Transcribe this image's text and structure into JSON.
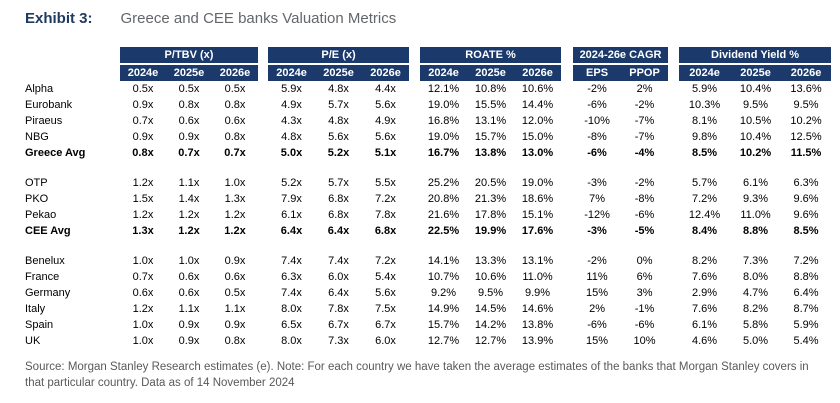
{
  "exhibit": {
    "label": "Exhibit 3:",
    "title": "Greece and CEE banks Valuation Metrics"
  },
  "colors": {
    "header_bg": "#1b3a6b",
    "exhibit_label_navy": "#1f3a5f",
    "title_gray": "#63666a",
    "footer_gray": "#595959"
  },
  "table": {
    "groups": [
      {
        "label": "P/TBV (x)",
        "cols": [
          "2024e",
          "2025e",
          "2026e"
        ]
      },
      {
        "label": "P/E (x)",
        "cols": [
          "2024e",
          "2025e",
          "2026e"
        ]
      },
      {
        "label": "ROATE %",
        "cols": [
          "2024e",
          "2025e",
          "2026e"
        ]
      },
      {
        "label": "2024-26e CAGR",
        "cols": [
          "EPS",
          "PPOP"
        ]
      },
      {
        "label": "Dividend Yield %",
        "cols": [
          "2024e",
          "2025e",
          "2026e"
        ]
      }
    ],
    "sections": [
      {
        "rows": [
          {
            "label": "Alpha",
            "bold": false,
            "values": [
              "0.5x",
              "0.5x",
              "0.5x",
              "5.9x",
              "4.8x",
              "4.4x",
              "12.1%",
              "10.8%",
              "10.6%",
              "-2%",
              "2%",
              "5.9%",
              "10.4%",
              "13.6%"
            ]
          },
          {
            "label": "Eurobank",
            "bold": false,
            "values": [
              "0.9x",
              "0.8x",
              "0.8x",
              "4.9x",
              "5.7x",
              "5.6x",
              "19.0%",
              "15.5%",
              "14.4%",
              "-6%",
              "-2%",
              "10.3%",
              "9.5%",
              "9.5%"
            ]
          },
          {
            "label": "Piraeus",
            "bold": false,
            "values": [
              "0.7x",
              "0.6x",
              "0.6x",
              "4.3x",
              "4.8x",
              "4.9x",
              "16.8%",
              "13.1%",
              "12.0%",
              "-10%",
              "-7%",
              "8.1%",
              "10.5%",
              "10.2%"
            ]
          },
          {
            "label": "NBG",
            "bold": false,
            "values": [
              "0.9x",
              "0.9x",
              "0.8x",
              "4.8x",
              "5.6x",
              "5.6x",
              "19.0%",
              "15.7%",
              "15.0%",
              "-8%",
              "-7%",
              "9.8%",
              "10.4%",
              "12.5%"
            ]
          },
          {
            "label": "Greece Avg",
            "bold": true,
            "values": [
              "0.8x",
              "0.7x",
              "0.7x",
              "5.0x",
              "5.2x",
              "5.1x",
              "16.7%",
              "13.8%",
              "13.0%",
              "-6%",
              "-4%",
              "8.5%",
              "10.2%",
              "11.5%"
            ]
          }
        ]
      },
      {
        "rows": [
          {
            "label": "OTP",
            "bold": false,
            "values": [
              "1.2x",
              "1.1x",
              "1.0x",
              "5.2x",
              "5.7x",
              "5.5x",
              "25.2%",
              "20.5%",
              "19.0%",
              "-3%",
              "-2%",
              "5.7%",
              "6.1%",
              "6.3%"
            ]
          },
          {
            "label": "PKO",
            "bold": false,
            "values": [
              "1.5x",
              "1.4x",
              "1.3x",
              "7.9x",
              "6.8x",
              "7.2x",
              "20.8%",
              "21.3%",
              "18.6%",
              "7%",
              "-8%",
              "7.2%",
              "9.3%",
              "9.6%"
            ]
          },
          {
            "label": "Pekao",
            "bold": false,
            "values": [
              "1.2x",
              "1.2x",
              "1.2x",
              "6.1x",
              "6.8x",
              "7.8x",
              "21.6%",
              "17.8%",
              "15.1%",
              "-12%",
              "-6%",
              "12.4%",
              "11.0%",
              "9.6%"
            ]
          },
          {
            "label": "CEE Avg",
            "bold": true,
            "values": [
              "1.3x",
              "1.2x",
              "1.2x",
              "6.4x",
              "6.4x",
              "6.8x",
              "22.5%",
              "19.9%",
              "17.6%",
              "-3%",
              "-5%",
              "8.4%",
              "8.8%",
              "8.5%"
            ]
          }
        ]
      },
      {
        "rows": [
          {
            "label": "Benelux",
            "bold": false,
            "values": [
              "1.0x",
              "1.0x",
              "0.9x",
              "7.4x",
              "7.4x",
              "7.2x",
              "14.1%",
              "13.3%",
              "13.1%",
              "-2%",
              "0%",
              "8.2%",
              "7.3%",
              "7.2%"
            ]
          },
          {
            "label": "France",
            "bold": false,
            "values": [
              "0.7x",
              "0.6x",
              "0.6x",
              "6.3x",
              "6.0x",
              "5.4x",
              "10.7%",
              "10.6%",
              "11.0%",
              "11%",
              "6%",
              "7.6%",
              "8.0%",
              "8.8%"
            ]
          },
          {
            "label": "Germany",
            "bold": false,
            "values": [
              "0.6x",
              "0.6x",
              "0.5x",
              "7.4x",
              "6.4x",
              "5.6x",
              "9.2%",
              "9.5%",
              "9.9%",
              "15%",
              "3%",
              "2.9%",
              "4.7%",
              "6.4%"
            ]
          },
          {
            "label": "Italy",
            "bold": false,
            "values": [
              "1.2x",
              "1.1x",
              "1.1x",
              "8.0x",
              "7.8x",
              "7.5x",
              "14.9%",
              "14.5%",
              "14.6%",
              "2%",
              "-1%",
              "7.6%",
              "8.2%",
              "8.7%"
            ]
          },
          {
            "label": "Spain",
            "bold": false,
            "values": [
              "1.0x",
              "0.9x",
              "0.9x",
              "6.5x",
              "6.7x",
              "6.7x",
              "15.7%",
              "14.2%",
              "13.8%",
              "-6%",
              "-6%",
              "6.1%",
              "5.8%",
              "5.9%"
            ]
          },
          {
            "label": "UK",
            "bold": false,
            "values": [
              "1.0x",
              "0.9x",
              "0.8x",
              "8.0x",
              "7.3x",
              "6.0x",
              "12.7%",
              "12.7%",
              "13.9%",
              "15%",
              "10%",
              "4.6%",
              "5.0%",
              "5.4%"
            ]
          }
        ]
      }
    ]
  },
  "footer": {
    "text": "Source: Morgan Stanley Research estimates (e). Note: For each country we have taken the average estimates of the banks that Morgan Stanley covers in that particular country. Data as of 14 November 2024"
  }
}
